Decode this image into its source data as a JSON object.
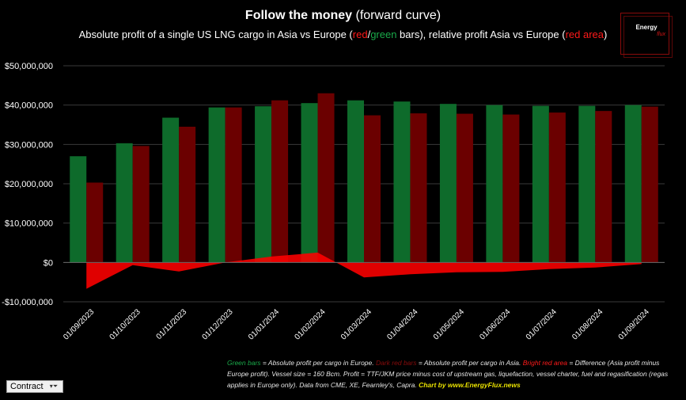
{
  "header": {
    "title_bold": "Follow the money",
    "title_rest": " (forward curve)",
    "subtitle_parts": [
      "Absolute profit of a single US LNG cargo in Asia vs Europe (",
      "red",
      "/",
      "green",
      " bars), relative profit Asia vs Europe (",
      "red area",
      ")"
    ]
  },
  "logo": {
    "line1": "Energy",
    "line2": "flux"
  },
  "note": {
    "green_bars": "Green bars",
    "t1": " = Absolute profit per cargo in Europe. ",
    "dark_red_bars": "Dark red bars",
    "t2": " = Absolute profit per cargo in Asia. ",
    "bright_red_area": "Bright red area",
    "t3": " = Difference (Asia profit minus Europe profit). Vessel size = 160 Bcm. Profit = TTF/JKM price minus cost of upstream gas, liquefaction, vessel charter, fuel and regasification (regas applies in Europe only). Data from CME, XE, Fearnley's, Capra. ",
    "credit": "Chart by www.EnergyFlux.news"
  },
  "filter": {
    "label": "Contract",
    "button_icon": "filter-dropdown-icon",
    "button_glyph": "▾⏷"
  },
  "colors": {
    "europe": "#0e6b2b",
    "asia": "#6b0000",
    "difference": "#ff0000",
    "background": "#000000"
  },
  "chart_data": {
    "type": "bar",
    "categories": [
      "01/09/2023",
      "01/10/2023",
      "01/11/2023",
      "01/12/2023",
      "01/01/2024",
      "01/02/2024",
      "01/03/2024",
      "01/04/2024",
      "01/05/2024",
      "01/06/2024",
      "01/07/2024",
      "01/08/2024",
      "01/09/2024"
    ],
    "series": [
      {
        "values": [
          27000000,
          30300000,
          36800000,
          39400000,
          39700000,
          40500000,
          41200000,
          40900000,
          40300000,
          40000000,
          39800000,
          39800000,
          40000000
        ],
        "kind": "bar"
      },
      {
        "values": [
          20300000,
          29600000,
          34500000,
          39400000,
          41200000,
          43000000,
          37400000,
          37900000,
          37800000,
          37600000,
          38100000,
          38500000,
          39600000
        ],
        "kind": "bar"
      },
      {
        "values": [
          -6700000,
          -700000,
          -2300000,
          0,
          1500000,
          2500000,
          -3800000,
          -3000000,
          -2500000,
          -2400000,
          -1700000,
          -1300000,
          -400000
        ],
        "kind": "area"
      }
    ],
    "ylim": [
      -10000000,
      50000000
    ],
    "yticks": [
      -10000000,
      0,
      10000000,
      20000000,
      30000000,
      40000000,
      50000000
    ],
    "ytick_labels": [
      "-$10,000,000",
      "$0",
      "$10,000,000",
      "$20,000,000",
      "$30,000,000",
      "$40,000,000",
      "$50,000,000"
    ],
    "grid": "horizontal",
    "legend": "none"
  }
}
